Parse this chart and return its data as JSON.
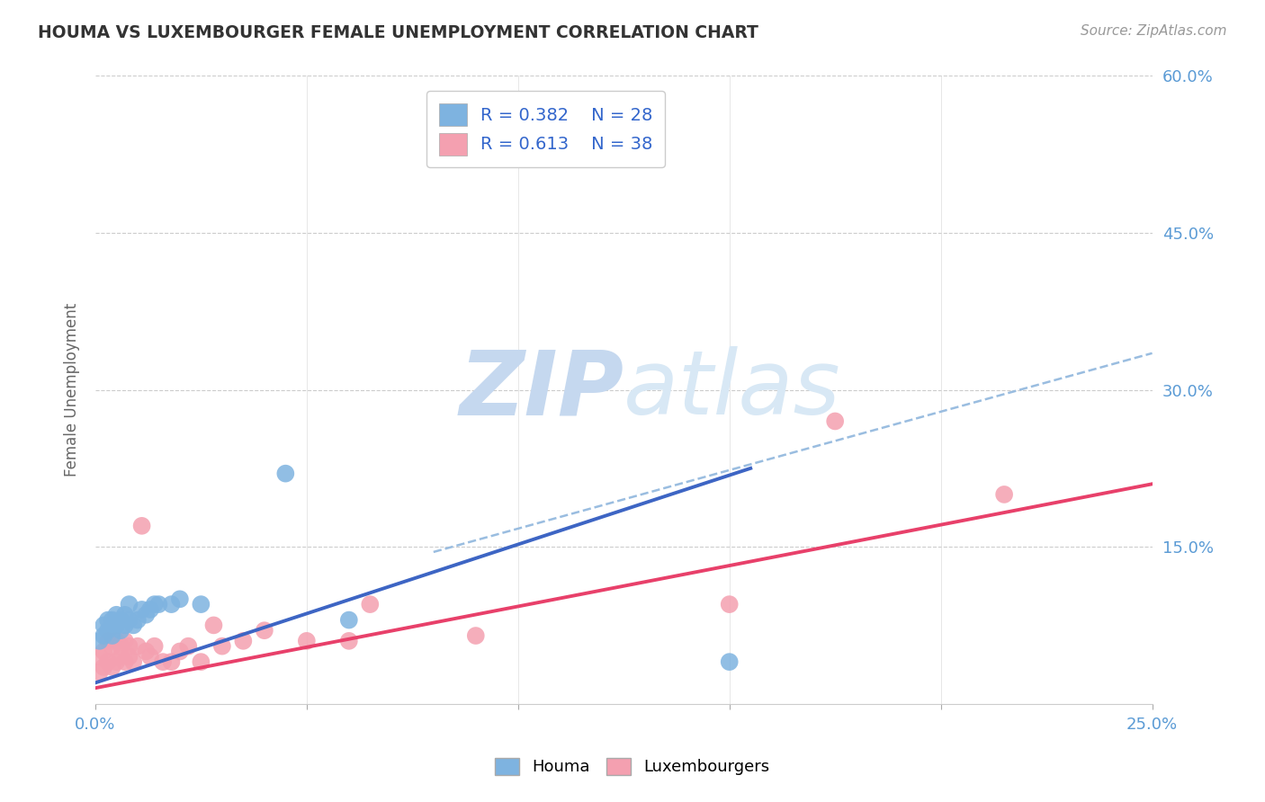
{
  "title": "HOUMA VS LUXEMBOURGER FEMALE UNEMPLOYMENT CORRELATION CHART",
  "source": "Source: ZipAtlas.com",
  "ylabel": "Female Unemployment",
  "xlim": [
    0,
    0.25
  ],
  "ylim": [
    0,
    0.6
  ],
  "xticks": [
    0.0,
    0.05,
    0.1,
    0.15,
    0.2,
    0.25
  ],
  "yticks": [
    0.0,
    0.15,
    0.3,
    0.45,
    0.6
  ],
  "xticklabels": [
    "0.0%",
    "",
    "",
    "",
    "",
    "25.0%"
  ],
  "yticklabels_right": [
    "",
    "15.0%",
    "30.0%",
    "45.0%",
    "60.0%"
  ],
  "houma_R": 0.382,
  "houma_N": 28,
  "luxembourger_R": 0.613,
  "luxembourger_N": 38,
  "houma_color": "#7EB3E0",
  "luxembourger_color": "#F4A0B0",
  "houma_line_color": "#3D65C4",
  "luxembourger_line_color": "#E8406A",
  "dashed_line_color": "#9ABDE0",
  "background_color": "#FFFFFF",
  "watermark_color": "#D8E5F5",
  "houma_x": [
    0.001,
    0.002,
    0.002,
    0.003,
    0.003,
    0.004,
    0.004,
    0.005,
    0.005,
    0.006,
    0.006,
    0.007,
    0.007,
    0.008,
    0.008,
    0.009,
    0.01,
    0.011,
    0.012,
    0.013,
    0.014,
    0.015,
    0.018,
    0.02,
    0.025,
    0.045,
    0.06,
    0.15
  ],
  "houma_y": [
    0.06,
    0.065,
    0.075,
    0.07,
    0.08,
    0.065,
    0.08,
    0.075,
    0.085,
    0.07,
    0.08,
    0.075,
    0.085,
    0.08,
    0.095,
    0.075,
    0.08,
    0.09,
    0.085,
    0.09,
    0.095,
    0.095,
    0.095,
    0.1,
    0.095,
    0.22,
    0.08,
    0.04
  ],
  "luxembourger_x": [
    0.001,
    0.001,
    0.002,
    0.002,
    0.003,
    0.003,
    0.004,
    0.004,
    0.005,
    0.005,
    0.006,
    0.006,
    0.007,
    0.007,
    0.008,
    0.008,
    0.009,
    0.01,
    0.011,
    0.012,
    0.013,
    0.014,
    0.016,
    0.018,
    0.02,
    0.022,
    0.025,
    0.028,
    0.03,
    0.035,
    0.04,
    0.05,
    0.06,
    0.065,
    0.09,
    0.15,
    0.175,
    0.215
  ],
  "luxembourger_y": [
    0.03,
    0.045,
    0.035,
    0.05,
    0.04,
    0.06,
    0.035,
    0.055,
    0.04,
    0.06,
    0.045,
    0.055,
    0.04,
    0.06,
    0.045,
    0.055,
    0.04,
    0.055,
    0.17,
    0.05,
    0.045,
    0.055,
    0.04,
    0.04,
    0.05,
    0.055,
    0.04,
    0.075,
    0.055,
    0.06,
    0.07,
    0.06,
    0.06,
    0.095,
    0.065,
    0.095,
    0.27,
    0.2
  ],
  "houma_line_x": [
    0.0,
    0.155
  ],
  "houma_line_y": [
    0.02,
    0.225
  ],
  "lux_line_x": [
    0.0,
    0.25
  ],
  "lux_line_y": [
    0.015,
    0.21
  ],
  "dash_line_x": [
    0.08,
    0.25
  ],
  "dash_line_y": [
    0.145,
    0.335
  ]
}
